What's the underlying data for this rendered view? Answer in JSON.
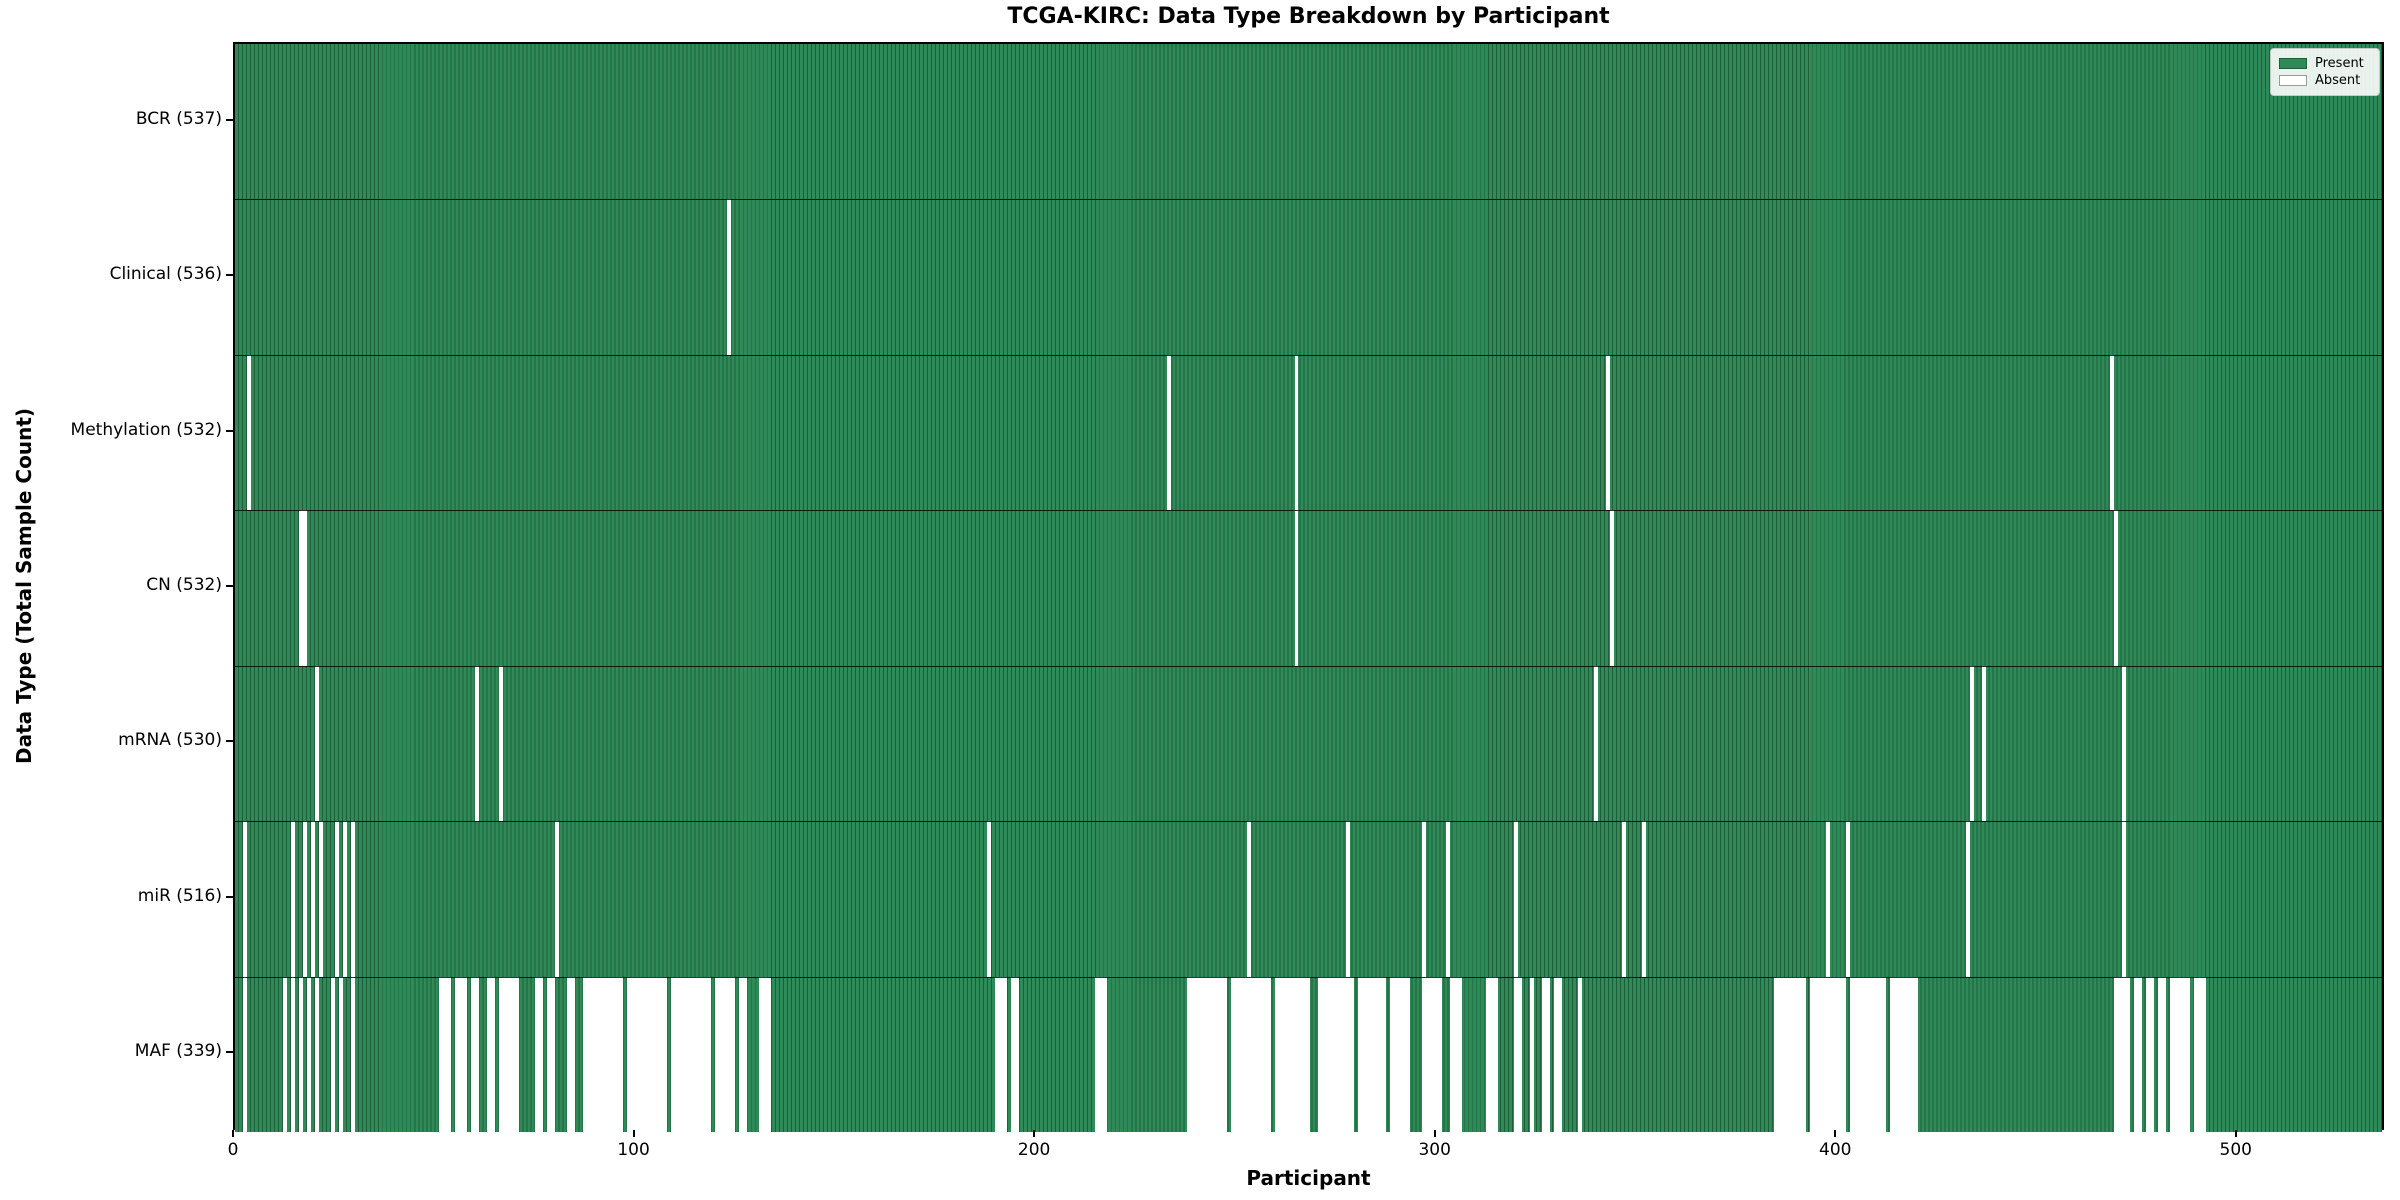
{
  "figure": {
    "title": "TCGA-KIRC: Data Type Breakdown by Participant",
    "xlabel": "Participant",
    "ylabel": "Data Type (Total Sample Count)"
  },
  "legend": {
    "present_label": "Present",
    "absent_label": "Absent"
  },
  "colors": {
    "present": "#2e8b57",
    "present_edge": "#1e5e3c",
    "absent": "#ffffff",
    "legend_bg": "#fafcfa",
    "legend_border": "#c8c8c8"
  },
  "chart_data": {
    "type": "heatmap",
    "title": "TCGA-KIRC: Data Type Breakdown by Participant",
    "xlabel": "Participant",
    "ylabel": "Data Type (Total Sample Count)",
    "x_ticks": [
      0,
      100,
      200,
      300,
      400,
      500
    ],
    "x_max": 537,
    "n_participants": 537,
    "grid": false,
    "legend_position": "upper right",
    "legend_entries": [
      "Present",
      "Absent"
    ],
    "rows": [
      {
        "data_type": "BCR",
        "label": "BCR (537)",
        "present_count": 537,
        "absent_ranges": []
      },
      {
        "data_type": "Clinical",
        "label": "Clinical (536)",
        "present_count": 536,
        "absent_ranges": [
          [
            123,
            123
          ]
        ]
      },
      {
        "data_type": "Methylation",
        "label": "Methylation (532)",
        "present_count": 532,
        "absent_ranges": [
          [
            3,
            3
          ],
          [
            233,
            233
          ],
          [
            265,
            265
          ],
          [
            343,
            343
          ],
          [
            469,
            469
          ]
        ]
      },
      {
        "data_type": "CN",
        "label": "CN (532)",
        "present_count": 532,
        "absent_ranges": [
          [
            16,
            17
          ],
          [
            265,
            265
          ],
          [
            344,
            344
          ],
          [
            470,
            470
          ]
        ]
      },
      {
        "data_type": "mRNA",
        "label": "mRNA (530)",
        "present_count": 530,
        "absent_ranges": [
          [
            20,
            20
          ],
          [
            60,
            60
          ],
          [
            66,
            66
          ],
          [
            340,
            340
          ],
          [
            434,
            434
          ],
          [
            437,
            437
          ],
          [
            472,
            472
          ]
        ]
      },
      {
        "data_type": "miR",
        "label": "miR (516)",
        "present_count": 516,
        "absent_ranges": [
          [
            2,
            2
          ],
          [
            14,
            14
          ],
          [
            17,
            17
          ],
          [
            19,
            19
          ],
          [
            21,
            21
          ],
          [
            25,
            25
          ],
          [
            27,
            27
          ],
          [
            29,
            29
          ],
          [
            80,
            80
          ],
          [
            188,
            188
          ],
          [
            253,
            253
          ],
          [
            278,
            278
          ],
          [
            297,
            297
          ],
          [
            303,
            303
          ],
          [
            320,
            320
          ],
          [
            347,
            347
          ],
          [
            352,
            352
          ],
          [
            398,
            398
          ],
          [
            403,
            403
          ],
          [
            433,
            433
          ],
          [
            472,
            472
          ]
        ]
      },
      {
        "data_type": "MAF",
        "label": "MAF (339)",
        "present_count": 339,
        "absent_ranges": [
          [
            2,
            2
          ],
          [
            12,
            12
          ],
          [
            14,
            14
          ],
          [
            16,
            16
          ],
          [
            18,
            18
          ],
          [
            20,
            20
          ],
          [
            24,
            24
          ],
          [
            26,
            26
          ],
          [
            29,
            29
          ],
          [
            51,
            53
          ],
          [
            55,
            57
          ],
          [
            59,
            60
          ],
          [
            63,
            64
          ],
          [
            66,
            70
          ],
          [
            75,
            76
          ],
          [
            78,
            79
          ],
          [
            83,
            84
          ],
          [
            87,
            96
          ],
          [
            98,
            107
          ],
          [
            109,
            118
          ],
          [
            120,
            124
          ],
          [
            126,
            127
          ],
          [
            131,
            133
          ],
          [
            190,
            192
          ],
          [
            194,
            195
          ],
          [
            215,
            217
          ],
          [
            238,
            247
          ],
          [
            249,
            258
          ],
          [
            260,
            268
          ],
          [
            271,
            279
          ],
          [
            281,
            287
          ],
          [
            289,
            293
          ],
          [
            297,
            301
          ],
          [
            304,
            306
          ],
          [
            313,
            315
          ],
          [
            320,
            321
          ],
          [
            324,
            324
          ],
          [
            327,
            328
          ],
          [
            330,
            331
          ],
          [
            336,
            336
          ],
          [
            385,
            392
          ],
          [
            394,
            402
          ],
          [
            404,
            412
          ],
          [
            414,
            420
          ],
          [
            470,
            473
          ],
          [
            475,
            476
          ],
          [
            478,
            479
          ],
          [
            481,
            482
          ],
          [
            484,
            488
          ],
          [
            490,
            492
          ]
        ]
      }
    ]
  }
}
